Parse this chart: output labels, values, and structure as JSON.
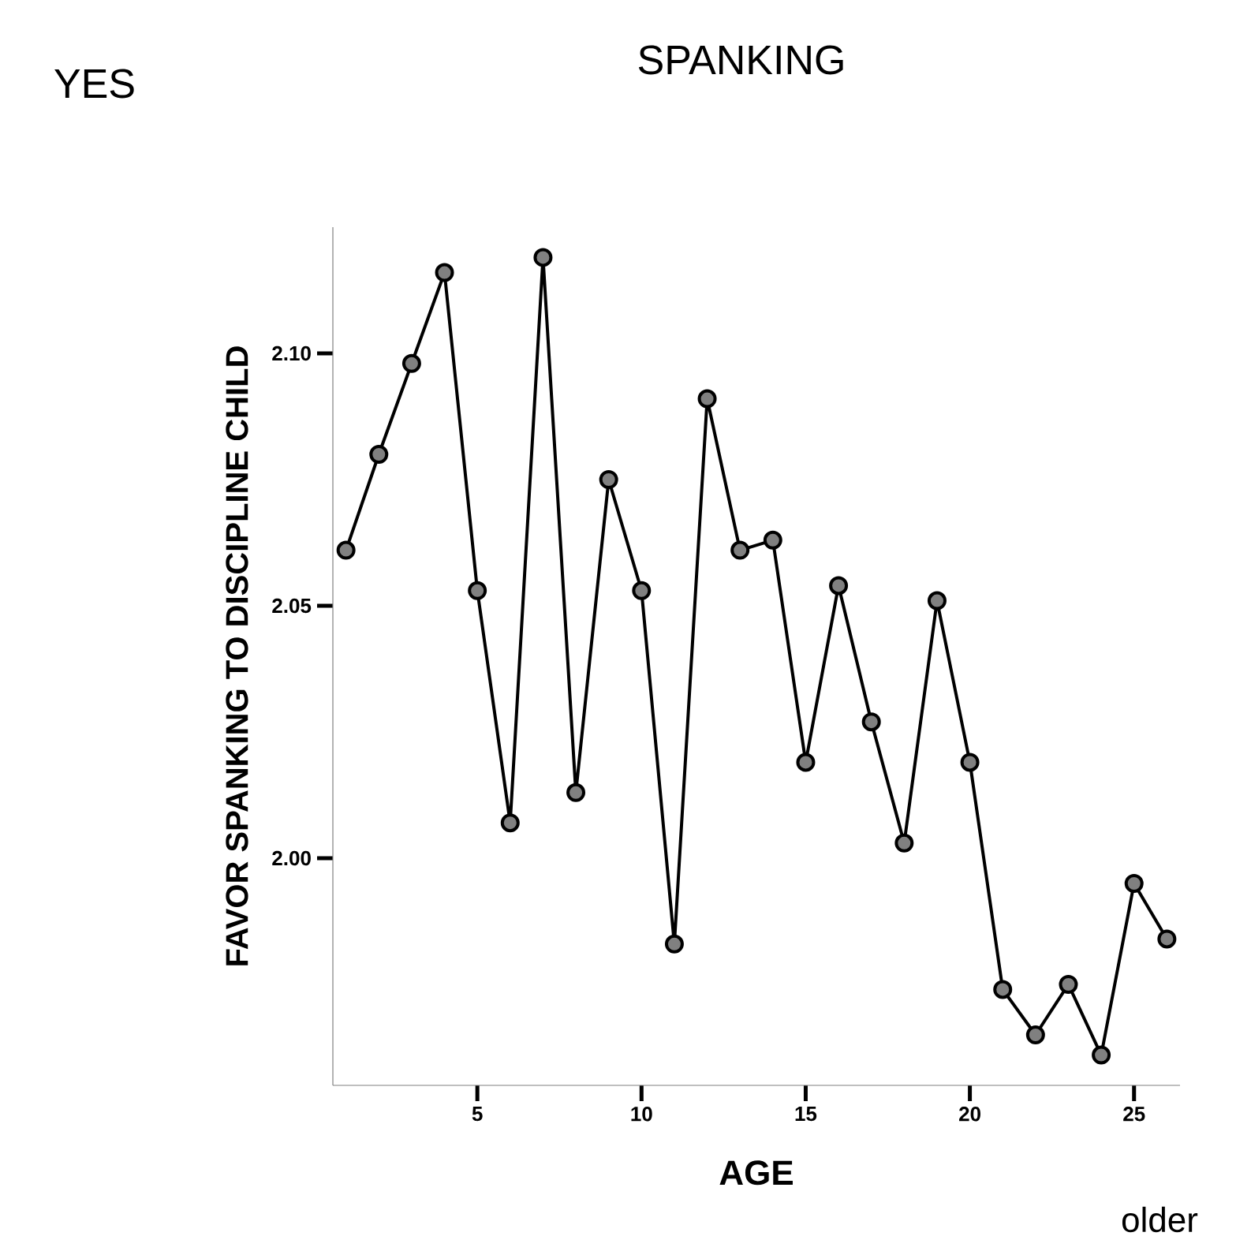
{
  "chart_data": {
    "type": "line",
    "title": "SPANKING",
    "xlabel": "AGE",
    "ylabel": "FAVOR SPANKING TO DISCIPLINE CHILD",
    "annotations": [
      "YES",
      "older"
    ],
    "x": [
      1,
      2,
      3,
      4,
      5,
      6,
      7,
      8,
      9,
      10,
      11,
      12,
      13,
      14,
      15,
      16,
      17,
      18,
      19,
      20,
      21,
      22,
      23,
      24,
      25,
      26
    ],
    "values": [
      2.061,
      2.08,
      2.098,
      2.116,
      2.053,
      2.007,
      2.119,
      2.013,
      2.075,
      2.053,
      1.983,
      2.091,
      2.061,
      2.063,
      2.019,
      2.054,
      2.027,
      2.003,
      2.051,
      2.019,
      1.974,
      1.965,
      1.975,
      1.961,
      1.995,
      1.984
    ],
    "color": "#000000",
    "marker": "circle",
    "line_style": "solid",
    "xlim": [
      0.6,
      26.4
    ],
    "ylim": [
      1.955,
      2.125
    ],
    "xticks": [
      5,
      10,
      15,
      20,
      25
    ],
    "yticks": [
      {
        "value": 2.0,
        "label": "2.00"
      },
      {
        "value": 2.05,
        "label": "2.05"
      },
      {
        "value": 2.1,
        "label": "2.10"
      }
    ],
    "grid": false
  }
}
